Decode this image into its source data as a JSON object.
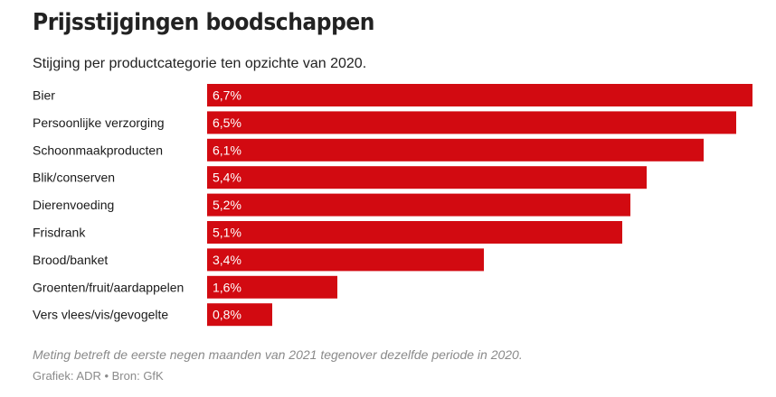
{
  "header": {
    "title": "Prijsstijgingen boodschappen",
    "subtitle": "Stijging per productcategorie ten opzichte van 2020."
  },
  "footer": {
    "note": "Meting betreft de eerste negen maanden van 2021 tegenover dezelfde periode in 2020.",
    "credit": "Grafiek: ADR • Bron: GfK"
  },
  "colors": {
    "bar": "#d20a11",
    "bar_label": "#ffffff",
    "category_label": "#1a1a1a"
  },
  "chart_data": {
    "type": "bar",
    "orientation": "horizontal",
    "title": "Prijsstijgingen boodschappen",
    "subtitle": "Stijging per productcategorie ten opzichte van 2020.",
    "xlabel": "",
    "ylabel": "",
    "xlim": [
      0,
      6.7
    ],
    "grid": false,
    "legend": "none",
    "categories": [
      "Bier",
      "Persoonlijke verzorging",
      "Schoonmaakproducten",
      "Blik/conserven",
      "Dierenvoeding",
      "Frisdrank",
      "Brood/banket",
      "Groenten/fruit/aardappelen",
      "Vers vlees/vis/gevogelte"
    ],
    "values": [
      6.7,
      6.5,
      6.1,
      5.4,
      5.2,
      5.1,
      3.4,
      1.6,
      0.8
    ],
    "value_labels": [
      "6,7%",
      "6,5%",
      "6,1%",
      "5,4%",
      "5,2%",
      "5,1%",
      "3,4%",
      "1,6%",
      "0,8%"
    ]
  }
}
